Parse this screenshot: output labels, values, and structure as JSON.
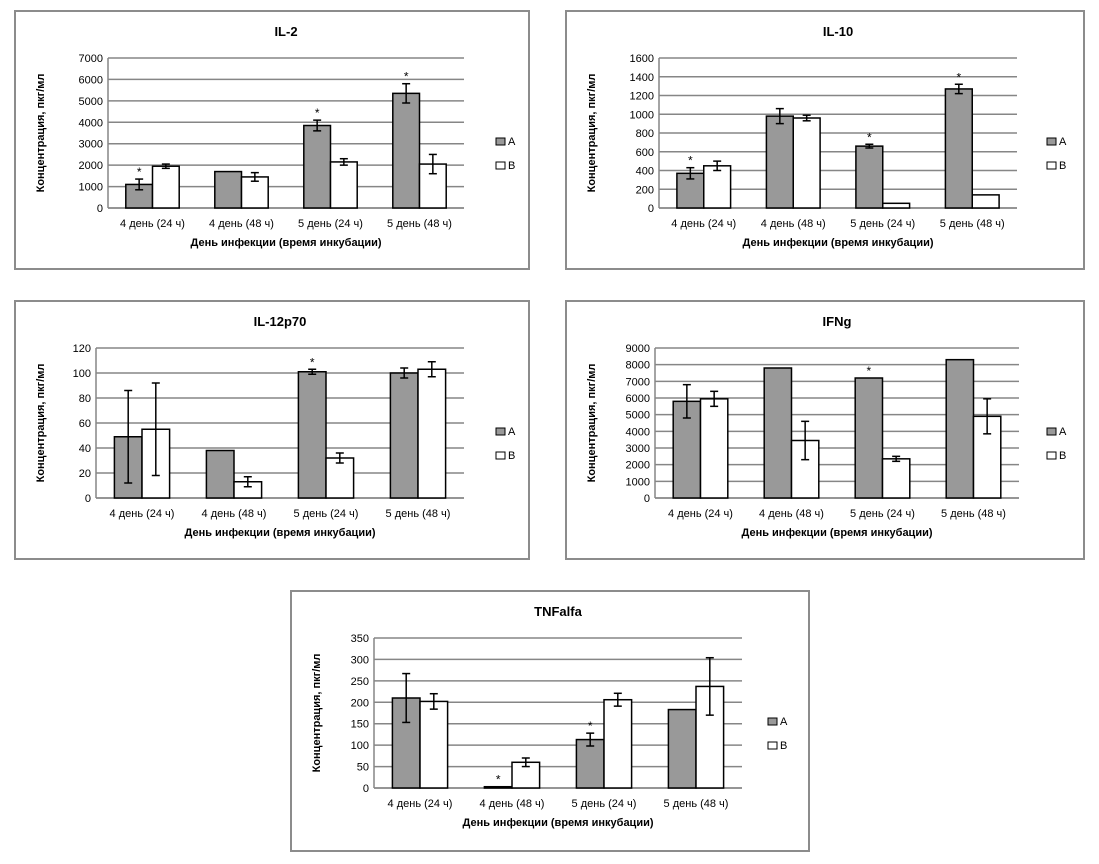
{
  "chart_data": [
    {
      "type": "bar",
      "title": "IL-2",
      "xlabel": "День инфекции (время инкубации)",
      "ylabel": "Концентрация, пкг/мл",
      "categories": [
        "4 день (24 ч)",
        "4 день (48 ч)",
        "5 день (24 ч)",
        "5 день (48 ч)"
      ],
      "ylim": [
        0,
        7000
      ],
      "yticks": [
        0,
        1000,
        2000,
        3000,
        4000,
        5000,
        6000,
        7000
      ],
      "series": [
        {
          "name": "A",
          "color": "#999999",
          "values": [
            1100,
            1700,
            3850,
            5350
          ],
          "errors": [
            250,
            0,
            250,
            450
          ]
        },
        {
          "name": "B",
          "color": "#ffffff",
          "values": [
            1950,
            1450,
            2150,
            2050
          ],
          "errors": [
            100,
            200,
            150,
            450
          ]
        }
      ],
      "significance": [
        "*",
        "",
        "*",
        "*"
      ],
      "grid": true,
      "legend": "right"
    },
    {
      "type": "bar",
      "title": "IL-10",
      "xlabel": "День инфекции (время инкубации)",
      "ylabel": "Концентрация, пкг/мл",
      "categories": [
        "4 день (24 ч)",
        "4 день (48 ч)",
        "5 день (24 ч)",
        "5 день (48 ч)"
      ],
      "ylim": [
        0,
        1600
      ],
      "yticks": [
        0,
        200,
        400,
        600,
        800,
        1000,
        1200,
        1400,
        1600
      ],
      "series": [
        {
          "name": "A",
          "color": "#999999",
          "values": [
            370,
            980,
            660,
            1270
          ],
          "errors": [
            60,
            80,
            20,
            50
          ]
        },
        {
          "name": "B",
          "color": "#ffffff",
          "values": [
            450,
            960,
            50,
            140
          ],
          "errors": [
            50,
            30,
            0,
            0
          ]
        }
      ],
      "significance": [
        "*",
        "",
        "*",
        "*"
      ],
      "grid": true,
      "legend": "right"
    },
    {
      "type": "bar",
      "title": "IL-12p70",
      "xlabel": "День инфекции (время инкубации)",
      "ylabel": "Концентрация, пкг/мл",
      "categories": [
        "4 день (24 ч)",
        "4 день (48 ч)",
        "5 день (24 ч)",
        "5 день (48 ч)"
      ],
      "ylim": [
        0,
        120
      ],
      "yticks": [
        0,
        20,
        40,
        60,
        80,
        100,
        120
      ],
      "series": [
        {
          "name": "A",
          "color": "#999999",
          "values": [
            49,
            38,
            101,
            100
          ],
          "errors": [
            37,
            0,
            2,
            4
          ]
        },
        {
          "name": "B",
          "color": "#ffffff",
          "values": [
            55,
            13,
            32,
            103
          ],
          "errors": [
            37,
            4,
            4,
            6
          ]
        }
      ],
      "significance": [
        "",
        "",
        "*",
        ""
      ],
      "grid": true,
      "legend": "right"
    },
    {
      "type": "bar",
      "title": "IFNg",
      "xlabel": "День инфекции (время инкубации)",
      "ylabel": "Концентрация, пкг/мл",
      "categories": [
        "4 день (24 ч)",
        "4 день (48 ч)",
        "5 день (24 ч)",
        "5 день (48 ч)"
      ],
      "ylim": [
        0,
        9000
      ],
      "yticks": [
        0,
        1000,
        2000,
        3000,
        4000,
        5000,
        6000,
        7000,
        8000,
        9000
      ],
      "series": [
        {
          "name": "A",
          "color": "#999999",
          "values": [
            5800,
            7800,
            7200,
            8300
          ],
          "errors": [
            1000,
            0,
            0,
            0
          ]
        },
        {
          "name": "B",
          "color": "#ffffff",
          "values": [
            5950,
            3450,
            2350,
            4900
          ],
          "errors": [
            450,
            1150,
            150,
            1050
          ]
        }
      ],
      "significance": [
        "",
        "",
        "*",
        ""
      ],
      "grid": true,
      "legend": "right"
    },
    {
      "type": "bar",
      "title": "TNFalfa",
      "xlabel": "День инфекции (время инкубации)",
      "ylabel": "Концентрация, пкг/мл",
      "categories": [
        "4 день (24 ч)",
        "4 день (48 ч)",
        "5 день (24 ч)",
        "5 день (48 ч)"
      ],
      "ylim": [
        0,
        350
      ],
      "yticks": [
        0,
        50,
        100,
        150,
        200,
        250,
        300,
        350
      ],
      "series": [
        {
          "name": "A",
          "color": "#999999",
          "values": [
            210,
            3,
            113,
            183
          ],
          "errors": [
            57,
            0,
            15,
            0
          ]
        },
        {
          "name": "B",
          "color": "#ffffff",
          "values": [
            202,
            60,
            206,
            237
          ],
          "errors": [
            18,
            10,
            15,
            67
          ]
        }
      ],
      "significance": [
        "",
        "*",
        "*",
        ""
      ],
      "grid": true,
      "legend": "right"
    }
  ]
}
